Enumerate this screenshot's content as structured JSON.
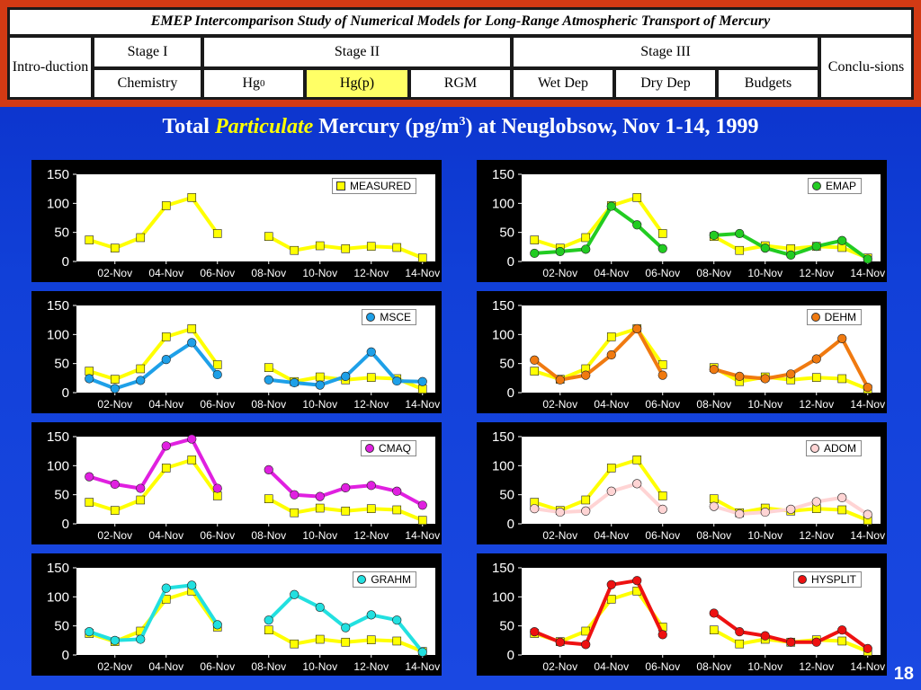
{
  "nav": {
    "title": "EMEP Intercomparison Study of Numerical Models for Long-Range Atmospheric Transport of Mercury",
    "intro": "Intro-duction",
    "stage1": "Stage I",
    "stage2": "Stage II",
    "stage3": "Stage III",
    "conclusions": "Conclu-sions",
    "chemistry": "Chemistry",
    "hg0_base": "Hg",
    "hg0_sup": "0",
    "hgp": "Hg(p)",
    "rgm": "RGM",
    "wetdep": "Wet Dep",
    "drydep": "Dry Dep",
    "budgets": "Budgets",
    "active_color": "#ffff66"
  },
  "page_title": {
    "part1": "Total ",
    "emph": "Particulate",
    "part2": " Mercury (pg/m",
    "sup": "3",
    "part3": ") at Neuglobsow, Nov 1-14, 1999"
  },
  "page_number": "18",
  "chart_data": [
    {
      "type": "line",
      "x": [
        "01-Nov",
        "02-Nov",
        "03-Nov",
        "04-Nov",
        "05-Nov",
        "06-Nov",
        "07-Nov",
        "08-Nov",
        "09-Nov",
        "10-Nov",
        "11-Nov",
        "12-Nov",
        "13-Nov",
        "14-Nov"
      ],
      "x_tick_labels": [
        "02-Nov",
        "04-Nov",
        "06-Nov",
        "08-Nov",
        "10-Nov",
        "12-Nov",
        "14-Nov"
      ],
      "ylim": [
        0,
        150
      ],
      "y_ticks": [
        0,
        50,
        100,
        150
      ],
      "legend": "MEASURED",
      "legend_position": "top-right",
      "series": [
        {
          "name": "MEASURED",
          "color": "#ffff00",
          "marker": "square",
          "values": [
            37,
            23,
            41,
            96,
            110,
            48,
            null,
            43,
            19,
            27,
            22,
            26,
            24,
            6
          ]
        }
      ]
    },
    {
      "type": "line",
      "x": [
        "01-Nov",
        "02-Nov",
        "03-Nov",
        "04-Nov",
        "05-Nov",
        "06-Nov",
        "07-Nov",
        "08-Nov",
        "09-Nov",
        "10-Nov",
        "11-Nov",
        "12-Nov",
        "13-Nov",
        "14-Nov"
      ],
      "x_tick_labels": [
        "02-Nov",
        "04-Nov",
        "06-Nov",
        "08-Nov",
        "10-Nov",
        "12-Nov",
        "14-Nov"
      ],
      "ylim": [
        0,
        150
      ],
      "y_ticks": [
        0,
        50,
        100,
        150
      ],
      "legend": "EMAP",
      "legend_position": "top-right",
      "series": [
        {
          "name": "MEASURED",
          "color": "#ffff00",
          "marker": "square",
          "values": [
            37,
            23,
            41,
            96,
            110,
            48,
            null,
            43,
            19,
            27,
            22,
            26,
            24,
            6
          ]
        },
        {
          "name": "EMAP",
          "color": "#22cc22",
          "marker": "circle",
          "values": [
            14,
            17,
            21,
            95,
            63,
            22,
            null,
            45,
            48,
            23,
            11,
            26,
            36,
            4
          ]
        }
      ]
    },
    {
      "type": "line",
      "x": [
        "01-Nov",
        "02-Nov",
        "03-Nov",
        "04-Nov",
        "05-Nov",
        "06-Nov",
        "07-Nov",
        "08-Nov",
        "09-Nov",
        "10-Nov",
        "11-Nov",
        "12-Nov",
        "13-Nov",
        "14-Nov"
      ],
      "x_tick_labels": [
        "02-Nov",
        "04-Nov",
        "06-Nov",
        "08-Nov",
        "10-Nov",
        "12-Nov",
        "14-Nov"
      ],
      "ylim": [
        0,
        150
      ],
      "y_ticks": [
        0,
        50,
        100,
        150
      ],
      "legend": "MSCE",
      "legend_position": "top-right",
      "series": [
        {
          "name": "MEASURED",
          "color": "#ffff00",
          "marker": "square",
          "values": [
            37,
            23,
            41,
            96,
            110,
            48,
            null,
            43,
            19,
            27,
            22,
            26,
            24,
            6
          ]
        },
        {
          "name": "MSCE",
          "color": "#1ea0e8",
          "marker": "circle",
          "values": [
            24,
            7,
            21,
            57,
            86,
            31,
            null,
            22,
            17,
            13,
            28,
            70,
            20,
            19
          ]
        }
      ]
    },
    {
      "type": "line",
      "x": [
        "01-Nov",
        "02-Nov",
        "03-Nov",
        "04-Nov",
        "05-Nov",
        "06-Nov",
        "07-Nov",
        "08-Nov",
        "09-Nov",
        "10-Nov",
        "11-Nov",
        "12-Nov",
        "13-Nov",
        "14-Nov"
      ],
      "x_tick_labels": [
        "02-Nov",
        "04-Nov",
        "06-Nov",
        "08-Nov",
        "10-Nov",
        "12-Nov",
        "14-Nov"
      ],
      "ylim": [
        0,
        150
      ],
      "y_ticks": [
        0,
        50,
        100,
        150
      ],
      "legend": "DEHM",
      "legend_position": "top-right",
      "series": [
        {
          "name": "MEASURED",
          "color": "#ffff00",
          "marker": "square",
          "values": [
            37,
            23,
            41,
            96,
            110,
            48,
            null,
            43,
            19,
            27,
            22,
            26,
            24,
            6
          ]
        },
        {
          "name": "DEHM",
          "color": "#f07a10",
          "marker": "circle",
          "values": [
            56,
            22,
            30,
            65,
            110,
            30,
            null,
            40,
            28,
            24,
            32,
            58,
            93,
            9
          ]
        }
      ]
    },
    {
      "type": "line",
      "x": [
        "01-Nov",
        "02-Nov",
        "03-Nov",
        "04-Nov",
        "05-Nov",
        "06-Nov",
        "07-Nov",
        "08-Nov",
        "09-Nov",
        "10-Nov",
        "11-Nov",
        "12-Nov",
        "13-Nov",
        "14-Nov"
      ],
      "x_tick_labels": [
        "02-Nov",
        "04-Nov",
        "06-Nov",
        "08-Nov",
        "10-Nov",
        "12-Nov",
        "14-Nov"
      ],
      "ylim": [
        0,
        150
      ],
      "y_ticks": [
        0,
        50,
        100,
        150
      ],
      "legend": "CMAQ",
      "legend_position": "top-right",
      "series": [
        {
          "name": "MEASURED",
          "color": "#ffff00",
          "marker": "square",
          "values": [
            37,
            23,
            41,
            96,
            110,
            48,
            null,
            43,
            19,
            27,
            22,
            26,
            24,
            6
          ]
        },
        {
          "name": "CMAQ",
          "color": "#e020e0",
          "marker": "circle",
          "values": [
            81,
            68,
            61,
            134,
            146,
            61,
            null,
            93,
            50,
            47,
            62,
            66,
            56,
            32
          ]
        }
      ]
    },
    {
      "type": "line",
      "x": [
        "01-Nov",
        "02-Nov",
        "03-Nov",
        "04-Nov",
        "05-Nov",
        "06-Nov",
        "07-Nov",
        "08-Nov",
        "09-Nov",
        "10-Nov",
        "11-Nov",
        "12-Nov",
        "13-Nov",
        "14-Nov"
      ],
      "x_tick_labels": [
        "02-Nov",
        "04-Nov",
        "06-Nov",
        "08-Nov",
        "10-Nov",
        "12-Nov",
        "14-Nov"
      ],
      "ylim": [
        0,
        150
      ],
      "y_ticks": [
        0,
        50,
        100,
        150
      ],
      "legend": "ADOM",
      "legend_position": "top-right",
      "series": [
        {
          "name": "MEASURED",
          "color": "#ffff00",
          "marker": "square",
          "values": [
            37,
            23,
            41,
            96,
            110,
            48,
            null,
            43,
            19,
            27,
            22,
            26,
            24,
            6
          ]
        },
        {
          "name": "ADOM",
          "color": "#ffd4d4",
          "marker": "circle",
          "values": [
            26,
            20,
            22,
            56,
            69,
            25,
            null,
            30,
            17,
            20,
            25,
            38,
            45,
            16
          ]
        }
      ]
    },
    {
      "type": "line",
      "x": [
        "01-Nov",
        "02-Nov",
        "03-Nov",
        "04-Nov",
        "05-Nov",
        "06-Nov",
        "07-Nov",
        "08-Nov",
        "09-Nov",
        "10-Nov",
        "11-Nov",
        "12-Nov",
        "13-Nov",
        "14-Nov"
      ],
      "x_tick_labels": [
        "02-Nov",
        "04-Nov",
        "06-Nov",
        "08-Nov",
        "10-Nov",
        "12-Nov",
        "14-Nov"
      ],
      "ylim": [
        0,
        150
      ],
      "y_ticks": [
        0,
        50,
        100,
        150
      ],
      "legend": "GRAHM",
      "legend_position": "top-right",
      "series": [
        {
          "name": "MEASURED",
          "color": "#ffff00",
          "marker": "square",
          "values": [
            37,
            23,
            41,
            96,
            110,
            48,
            null,
            43,
            19,
            27,
            22,
            26,
            24,
            6
          ]
        },
        {
          "name": "GRAHM",
          "color": "#22e0e0",
          "marker": "circle",
          "values": [
            40,
            25,
            27,
            115,
            120,
            52,
            null,
            60,
            104,
            82,
            47,
            69,
            60,
            5
          ]
        }
      ]
    },
    {
      "type": "line",
      "x": [
        "01-Nov",
        "02-Nov",
        "03-Nov",
        "04-Nov",
        "05-Nov",
        "06-Nov",
        "07-Nov",
        "08-Nov",
        "09-Nov",
        "10-Nov",
        "11-Nov",
        "12-Nov",
        "13-Nov",
        "14-Nov"
      ],
      "x_tick_labels": [
        "02-Nov",
        "04-Nov",
        "06-Nov",
        "08-Nov",
        "10-Nov",
        "12-Nov",
        "14-Nov"
      ],
      "ylim": [
        0,
        150
      ],
      "y_ticks": [
        0,
        50,
        100,
        150
      ],
      "legend": "HYSPLIT",
      "legend_position": "top-right",
      "series": [
        {
          "name": "MEASURED",
          "color": "#ffff00",
          "marker": "square",
          "values": [
            37,
            23,
            41,
            96,
            110,
            48,
            null,
            43,
            19,
            27,
            22,
            26,
            24,
            6
          ]
        },
        {
          "name": "HYSPLIT",
          "color": "#ee1111",
          "marker": "circle",
          "values": [
            40,
            22,
            18,
            121,
            128,
            35,
            null,
            72,
            40,
            33,
            22,
            22,
            43,
            11
          ]
        }
      ]
    }
  ]
}
